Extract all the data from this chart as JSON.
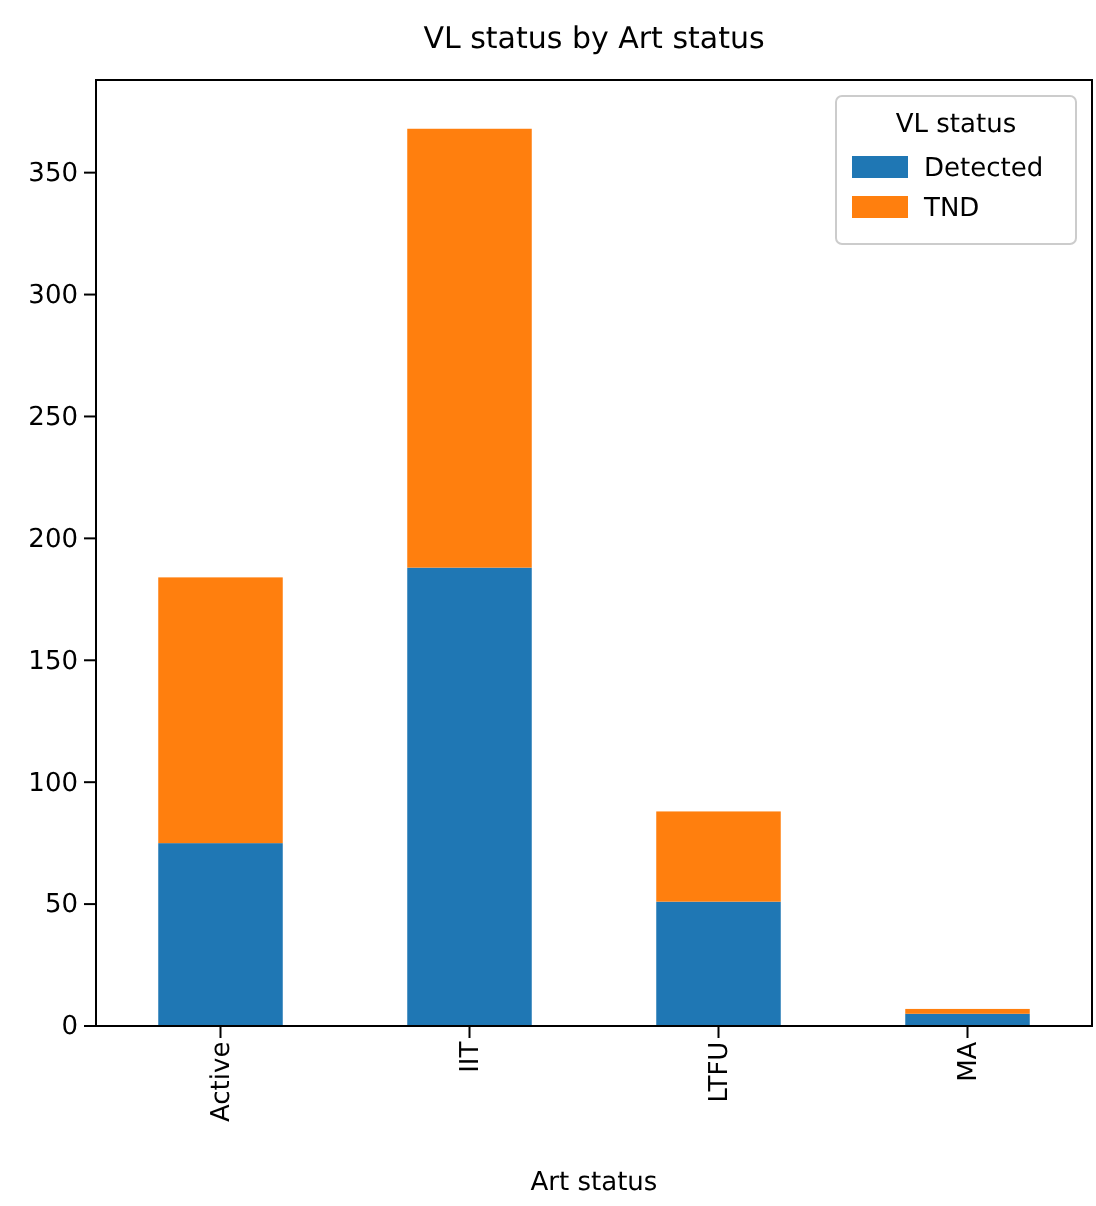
{
  "chart_data": {
    "type": "bar",
    "title": "VL status by Art status",
    "xlabel": "Art status",
    "legend_title": "VL status",
    "categories": [
      "Active",
      "IIT",
      "LTFU",
      "MA"
    ],
    "stacked": true,
    "legend": "top right",
    "ylim": [
      0,
      388
    ],
    "yticks": [
      0,
      50,
      100,
      150,
      200,
      250,
      300,
      350
    ],
    "series": [
      {
        "name": "Detected",
        "color": "#1f77b4",
        "values": [
          75,
          188,
          51,
          5
        ]
      },
      {
        "name": "TND",
        "color": "#ff7f0e",
        "values": [
          109,
          180,
          37,
          2
        ]
      }
    ]
  }
}
